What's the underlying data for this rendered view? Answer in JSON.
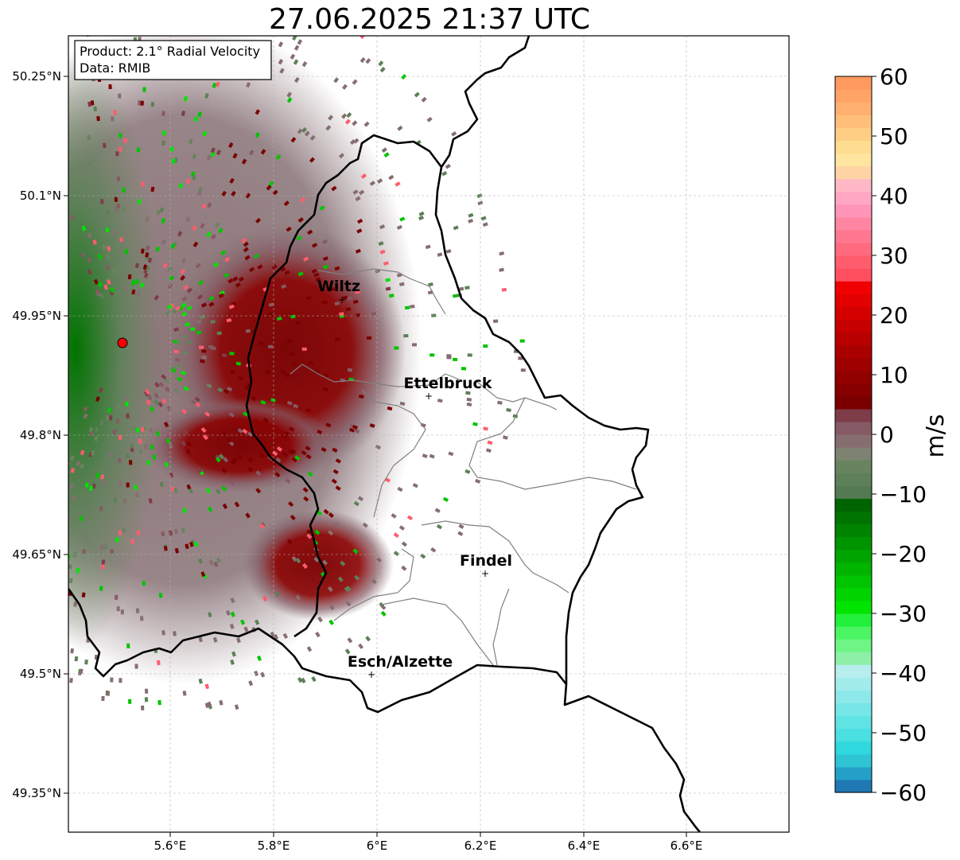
{
  "title": "27.06.2025 21:37 UTC",
  "info_box": {
    "product": "Product: 2.1° Radial Velocity",
    "data": "Data: RMIB"
  },
  "axes": {
    "x_ticks": [
      "5.6°E",
      "5.8°E",
      "6°E",
      "6.2°E",
      "6.4°E",
      "6.6°E"
    ],
    "y_ticks": [
      "50.25°N",
      "50.1°N",
      "49.95°N",
      "49.8°N",
      "49.65°N",
      "49.5°N",
      "49.35°N"
    ],
    "x_range": [
      5.4,
      6.8
    ],
    "y_range": [
      49.3,
      50.3
    ],
    "grid": true
  },
  "cities": [
    {
      "name": "Wiltz",
      "lon": 5.93,
      "lat": 49.966
    },
    {
      "name": "Ettelbruck",
      "lon": 6.1,
      "lat": 49.847
    },
    {
      "name": "Findel",
      "lon": 6.21,
      "lat": 49.626
    },
    {
      "name": "Esch/Alzette",
      "lon": 5.99,
      "lat": 49.499
    }
  ],
  "radar_site": {
    "lon": 5.505,
    "lat": 49.914,
    "color": "#ff0000"
  },
  "colorbar": {
    "label": "m/s",
    "ticks": [
      "60",
      "50",
      "40",
      "30",
      "20",
      "10",
      "0",
      "−10",
      "−20",
      "−30",
      "−40",
      "−50",
      "−60"
    ],
    "min": -60,
    "max": 60,
    "colors": [
      "#1f78b4",
      "#24a0c8",
      "#2ec4d4",
      "#2fd8dc",
      "#4adfe0",
      "#5fe3e3",
      "#76e6e6",
      "#8de9e9",
      "#a3ecec",
      "#b8eeee",
      "#8ef0a8",
      "#6ef585",
      "#4cf564",
      "#22f03a",
      "#00e400",
      "#00d400",
      "#00c400",
      "#00b400",
      "#00a400",
      "#009400",
      "#008400",
      "#007400",
      "#006400",
      "#537a53",
      "#5d8058",
      "#68845f",
      "#7e8270",
      "#866e70",
      "#855a64",
      "#7e3c49",
      "#7a0000",
      "#860000",
      "#920000",
      "#9e0000",
      "#aa0000",
      "#b80000",
      "#c60000",
      "#d40000",
      "#e20000",
      "#f00000",
      "#ff4f5e",
      "#ff5c6e",
      "#ff6a7f",
      "#ff7890",
      "#ff86a3",
      "#ff95b8",
      "#ffa7c3",
      "#ffb8c5",
      "#ffd4a5",
      "#ffe5a0",
      "#ffdd90",
      "#ffce85",
      "#ffbf7a",
      "#ffb070",
      "#ffa466",
      "#ff9a5e"
    ]
  },
  "colors": {
    "border": "#000000",
    "canton_border": "#808080",
    "grid": "#b0b0b0"
  }
}
